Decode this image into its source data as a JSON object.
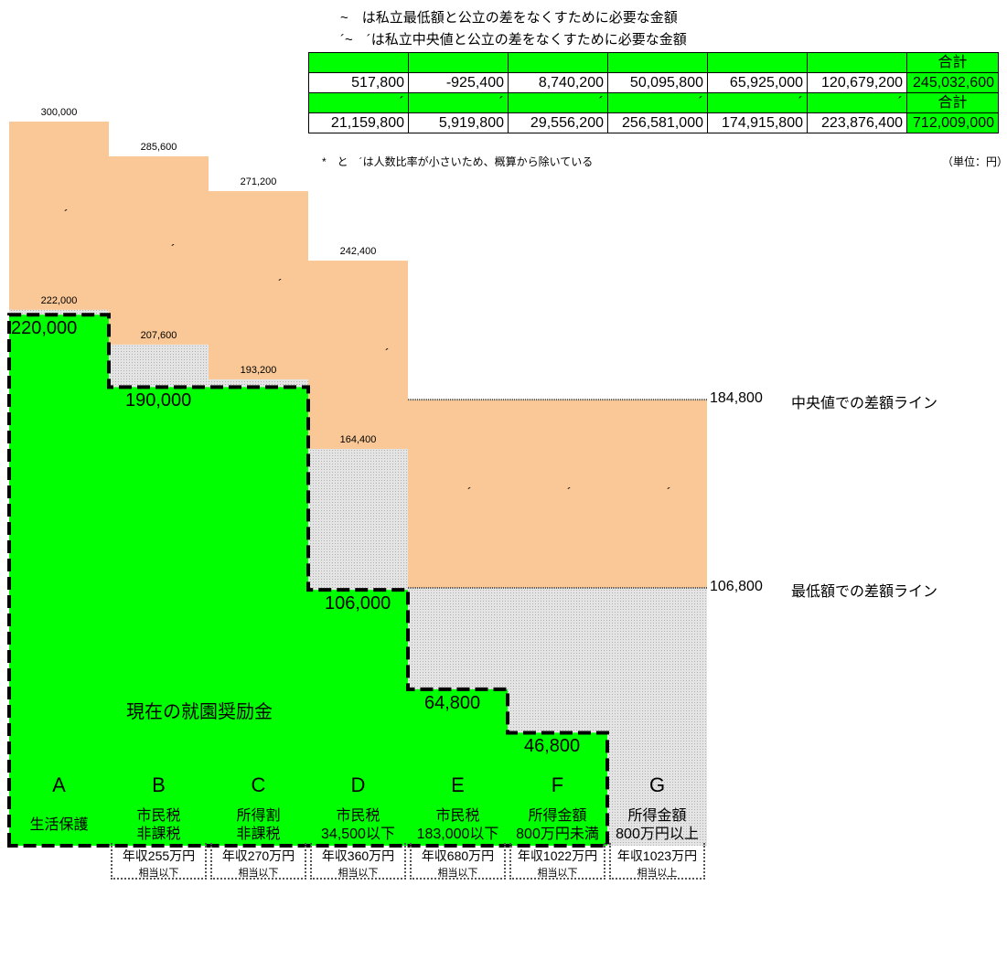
{
  "legend": {
    "line1": "~　は私立最低額と公立の差をなくすために必要な金額",
    "line2": "´~　´は私立中央値と公立の差をなくすために必要な金額"
  },
  "summary_table": {
    "total_label": "合計",
    "row_min": [
      "517,800",
      "-925,400",
      "8,740,200",
      "50,095,800",
      "65,925,000",
      "120,679,200",
      "245,032,600"
    ],
    "marks_row": [
      "´",
      "´",
      "´",
      "´",
      "´",
      "´"
    ],
    "row_median": [
      "21,159,800",
      "5,919,800",
      "29,556,200",
      "256,581,000",
      "174,915,800",
      "223,876,400",
      "712,009,000"
    ]
  },
  "footnote": "*　と　´は人数比率が小さいため、概算から除いている",
  "unit": "（単位：円）",
  "chart_data": {
    "type": "bar",
    "categories": [
      "A",
      "B",
      "C",
      "D",
      "E",
      "F",
      "G"
    ],
    "category_labels": [
      [
        "生活保護",
        ""
      ],
      [
        "市民税",
        "非課税"
      ],
      [
        "所得割",
        "非課税"
      ],
      [
        "市民税",
        "34,500以下"
      ],
      [
        "市民税",
        "183,000以下"
      ],
      [
        "所得金額",
        "800万円未満"
      ],
      [
        "所得金額",
        "800万円以上"
      ]
    ],
    "income_labels": [
      [
        "",
        ""
      ],
      [
        "年収255万円",
        "相当以下"
      ],
      [
        "年収270万円",
        "相当以下"
      ],
      [
        "年収360万円",
        "相当以下"
      ],
      [
        "年収680万円",
        "相当以下"
      ],
      [
        "年収1022万円",
        "相当以下"
      ],
      [
        "年収1023万円",
        "相当以上"
      ]
    ],
    "series": [
      {
        "name": "現在の就園奨励金",
        "values": [
          220000,
          190000,
          190000,
          106000,
          64800,
          46800,
          0
        ],
        "color": "#00ff00"
      },
      {
        "values": [
          222000,
          207600,
          193200,
          164400,
          106800,
          106800,
          106800
        ],
        "color": "#d9d9d9"
      },
      {
        "values": [
          300000,
          285600,
          271200,
          242400,
          184800,
          184800,
          184800
        ],
        "color": "#fac896"
      }
    ],
    "current_labels": [
      "220,000",
      "190,000",
      "",
      "106,000",
      "64,800",
      "46,800",
      ""
    ],
    "min_labels": [
      "222,000",
      "207,600",
      "193,200",
      "164,400",
      "",
      "",
      ""
    ],
    "median_labels": [
      "300,000",
      "285,600",
      "271,200",
      "242,400",
      "",
      "",
      ""
    ],
    "segment_marks": [
      "´",
      "´",
      "´",
      "´",
      "´",
      "´",
      "´"
    ],
    "reference_lines": [
      {
        "value": 184800,
        "value_label": "184,800",
        "label": "中央値での差額ライン"
      },
      {
        "value": 106800,
        "value_label": "106,800",
        "label": "最低額での差額ライン"
      }
    ],
    "center_label": "現在の就園奨励金",
    "ylim": [
      0,
      300000
    ]
  }
}
